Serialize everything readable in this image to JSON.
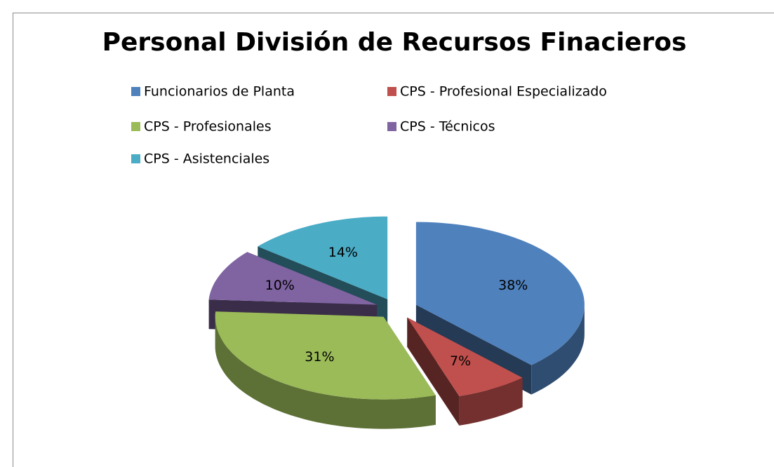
{
  "chart_data": {
    "type": "pie3d",
    "title": "Personal División de Recursos Finacieros",
    "categories": [
      "Funcionarios de Planta",
      "CPS  - Profesional Especializado",
      "CPS  - Profesionales",
      "CPS - Técnicos",
      "CPS - Asistenciales"
    ],
    "values": [
      38,
      7,
      31,
      10,
      14
    ],
    "value_labels": [
      "38%",
      "7%",
      "31%",
      "10%",
      "14%"
    ],
    "colors": [
      "#4f81bd",
      "#c0504d",
      "#9bbb59",
      "#8064a2",
      "#4bacc6"
    ],
    "legend": "top"
  }
}
